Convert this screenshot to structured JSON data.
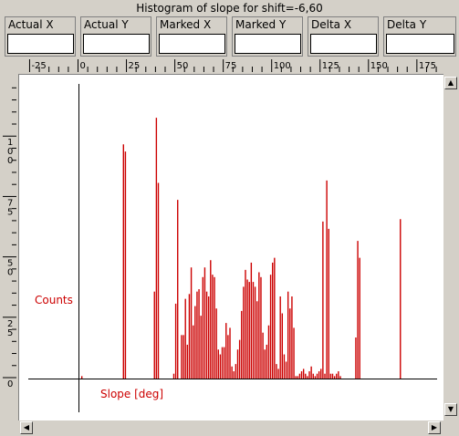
{
  "window": {
    "title": "Histogram of slope for shift=-6,60"
  },
  "fields": [
    {
      "label": "Actual X",
      "value": ""
    },
    {
      "label": "Actual Y",
      "value": ""
    },
    {
      "label": "Marked X",
      "value": ""
    },
    {
      "label": "Marked Y",
      "value": ""
    },
    {
      "label": "Delta X",
      "value": ""
    },
    {
      "label": "Delta Y",
      "value": ""
    }
  ],
  "ruler": {
    "x_ticks": [
      "-25",
      "0",
      "25",
      "50",
      "75",
      "100",
      "125",
      "150",
      "175"
    ],
    "y_ticks": [
      "0",
      "25",
      "50",
      "75",
      "100"
    ]
  },
  "chart_data": {
    "type": "bar",
    "title": "Histogram of slope for shift=-6,60",
    "xlabel": "Slope [deg]",
    "ylabel": "Counts",
    "xlim": [
      -29,
      190
    ],
    "ylim": [
      0,
      122
    ],
    "color": "#cc0000",
    "x": [
      1.5,
      23,
      24,
      39,
      40,
      41,
      49,
      50,
      51,
      53,
      54,
      55,
      56,
      57,
      58,
      59,
      60,
      61,
      62,
      63,
      64,
      65,
      66,
      67,
      68,
      69,
      70,
      71,
      72,
      73,
      74,
      75,
      76,
      77,
      78,
      79,
      80,
      81,
      82,
      83,
      84,
      85,
      86,
      87,
      88,
      89,
      90,
      91,
      92,
      93,
      94,
      95,
      96,
      97,
      98,
      99,
      100,
      101,
      102,
      103,
      104,
      105,
      106,
      107,
      108,
      109,
      110,
      111,
      112,
      113,
      114,
      115,
      116,
      117,
      118,
      119,
      120,
      121,
      122,
      123,
      124,
      125,
      126,
      127,
      128,
      129,
      130,
      131,
      132,
      133,
      134,
      135,
      143,
      144,
      145,
      166
    ],
    "values": [
      1,
      97,
      94,
      36,
      108,
      81,
      2,
      31,
      74,
      18,
      18,
      33,
      14,
      35,
      46,
      22,
      30,
      36,
      37,
      26,
      42,
      46,
      36,
      34,
      49,
      43,
      42,
      29,
      12,
      10,
      13,
      13,
      23,
      18,
      21,
      5,
      3,
      6,
      12,
      16,
      28,
      38,
      45,
      41,
      40,
      48,
      40,
      38,
      32,
      44,
      42,
      19,
      12,
      14,
      22,
      43,
      48,
      50,
      6,
      4,
      34,
      27,
      10,
      7,
      36,
      29,
      34,
      21,
      1,
      1,
      2,
      3,
      4,
      2,
      1,
      3,
      5,
      2,
      1,
      2,
      3,
      4,
      65,
      2,
      82,
      62,
      2,
      2,
      1,
      2,
      3,
      1,
      17,
      57,
      50,
      66
    ]
  }
}
